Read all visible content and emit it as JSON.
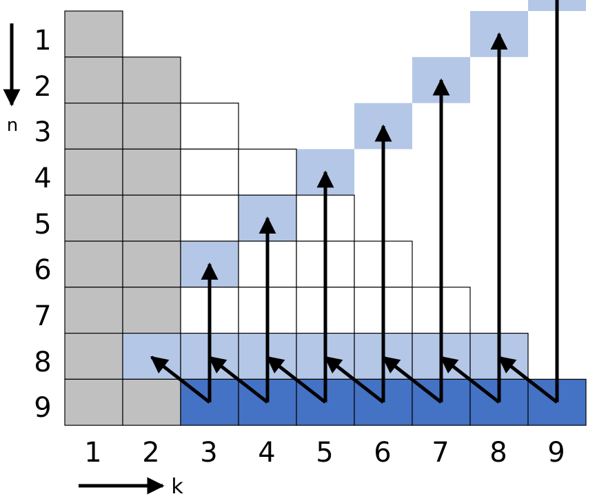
{
  "axes": {
    "row_label": "n",
    "col_label": "k",
    "rows": [
      "1",
      "2",
      "3",
      "4",
      "5",
      "6",
      "7",
      "8",
      "9"
    ],
    "cols": [
      "1",
      "2",
      "3",
      "4",
      "5",
      "6",
      "7",
      "8",
      "9"
    ]
  },
  "colors": {
    "gray": "#c0c0c0",
    "light_blue": "#b4c7e7",
    "dark_blue": "#4472c4",
    "white": "#ffffff",
    "line": "#000000"
  },
  "grid": {
    "note_rows_are_n_1_to_9_cols_are_k_1_to_9": "",
    "cells": [
      {
        "n": 1,
        "k": 1,
        "fill": "gray"
      },
      {
        "n": 2,
        "k": 1,
        "fill": "gray"
      },
      {
        "n": 2,
        "k": 2,
        "fill": "gray"
      },
      {
        "n": 3,
        "k": 1,
        "fill": "gray"
      },
      {
        "n": 3,
        "k": 2,
        "fill": "gray"
      },
      {
        "n": 3,
        "k": 3,
        "fill": "white"
      },
      {
        "n": 4,
        "k": 1,
        "fill": "gray"
      },
      {
        "n": 4,
        "k": 2,
        "fill": "gray"
      },
      {
        "n": 4,
        "k": 3,
        "fill": "white"
      },
      {
        "n": 4,
        "k": 4,
        "fill": "white"
      },
      {
        "n": 5,
        "k": 1,
        "fill": "gray"
      },
      {
        "n": 5,
        "k": 2,
        "fill": "gray"
      },
      {
        "n": 5,
        "k": 3,
        "fill": "white"
      },
      {
        "n": 5,
        "k": 4,
        "fill": "light_blue"
      },
      {
        "n": 5,
        "k": 5,
        "fill": "white"
      },
      {
        "n": 6,
        "k": 1,
        "fill": "gray"
      },
      {
        "n": 6,
        "k": 2,
        "fill": "gray"
      },
      {
        "n": 6,
        "k": 3,
        "fill": "light_blue"
      },
      {
        "n": 6,
        "k": 4,
        "fill": "white"
      },
      {
        "n": 6,
        "k": 5,
        "fill": "white"
      },
      {
        "n": 6,
        "k": 6,
        "fill": "white"
      },
      {
        "n": 7,
        "k": 1,
        "fill": "gray"
      },
      {
        "n": 7,
        "k": 2,
        "fill": "gray"
      },
      {
        "n": 7,
        "k": 3,
        "fill": "white"
      },
      {
        "n": 7,
        "k": 4,
        "fill": "white"
      },
      {
        "n": 7,
        "k": 5,
        "fill": "white"
      },
      {
        "n": 7,
        "k": 6,
        "fill": "white"
      },
      {
        "n": 7,
        "k": 7,
        "fill": "white"
      },
      {
        "n": 8,
        "k": 1,
        "fill": "gray"
      },
      {
        "n": 8,
        "k": 2,
        "fill": "light_blue"
      },
      {
        "n": 8,
        "k": 3,
        "fill": "light_blue"
      },
      {
        "n": 8,
        "k": 4,
        "fill": "light_blue"
      },
      {
        "n": 8,
        "k": 5,
        "fill": "light_blue"
      },
      {
        "n": 8,
        "k": 6,
        "fill": "light_blue"
      },
      {
        "n": 8,
        "k": 7,
        "fill": "light_blue"
      },
      {
        "n": 8,
        "k": 8,
        "fill": "light_blue"
      },
      {
        "n": 9,
        "k": 1,
        "fill": "gray"
      },
      {
        "n": 9,
        "k": 2,
        "fill": "gray"
      },
      {
        "n": 9,
        "k": 3,
        "fill": "dark_blue"
      },
      {
        "n": 9,
        "k": 4,
        "fill": "dark_blue"
      },
      {
        "n": 9,
        "k": 5,
        "fill": "dark_blue"
      },
      {
        "n": 9,
        "k": 6,
        "fill": "dark_blue"
      },
      {
        "n": 9,
        "k": 7,
        "fill": "dark_blue"
      },
      {
        "n": 9,
        "k": 8,
        "fill": "dark_blue"
      },
      {
        "n": 9,
        "k": 9,
        "fill": "dark_blue"
      }
    ],
    "unbordered_cells": [
      {
        "n": 4,
        "k": 5,
        "fill": "light_blue"
      },
      {
        "n": 3,
        "k": 6,
        "fill": "light_blue"
      },
      {
        "n": 2,
        "k": 7,
        "fill": "light_blue"
      },
      {
        "n": 1,
        "k": 8,
        "fill": "light_blue"
      },
      {
        "n": 0,
        "k": 9,
        "fill": "light_blue"
      }
    ]
  },
  "arrows": [
    {
      "k": 3,
      "to_n": 6
    },
    {
      "k": 4,
      "to_n": 5
    },
    {
      "k": 5,
      "to_n": 4
    },
    {
      "k": 6,
      "to_n": 3
    },
    {
      "k": 7,
      "to_n": 2
    },
    {
      "k": 8,
      "to_n": 1
    },
    {
      "k": 9,
      "to_n": 0
    }
  ]
}
